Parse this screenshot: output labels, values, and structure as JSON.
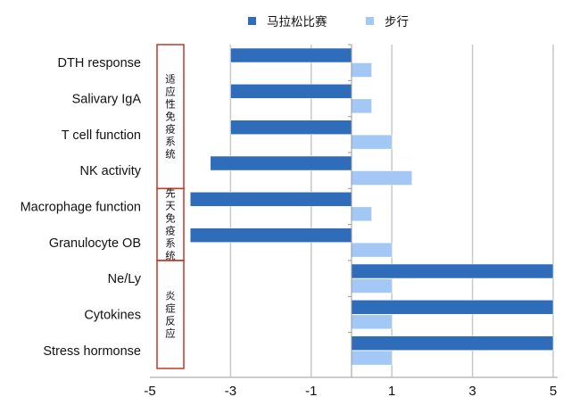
{
  "chart_data": {
    "type": "bar",
    "orientation": "horizontal",
    "categories": [
      "DTH response",
      "Salivary IgA",
      "T cell function",
      "NK activity",
      "Macrophage function",
      "Granulocyte OB",
      "Ne/Ly",
      "Cytokines",
      "Stress hormonse"
    ],
    "series": [
      {
        "name": "马拉松比赛",
        "color": "#2f6dbb",
        "values": [
          -3,
          -3,
          -3,
          -3.5,
          -4,
          -4,
          5,
          5,
          5
        ]
      },
      {
        "name": "步行",
        "color": "#a4c8f6",
        "values": [
          0.5,
          0.5,
          1,
          1.5,
          0.5,
          1,
          1,
          1,
          1
        ]
      }
    ],
    "groups": [
      {
        "label": "适应性免疫系统",
        "categories": [
          "DTH response",
          "Salivary IgA",
          "T cell function",
          "NK activity"
        ]
      },
      {
        "label": "先天免疫系统",
        "categories": [
          "Macrophage function",
          "Granulocyte OB"
        ]
      },
      {
        "label": "炎症反应",
        "categories": [
          "Ne/Ly",
          "Cytokines",
          "Stress hormonse"
        ]
      }
    ],
    "group_box_color": "#c0392b",
    "xlim": [
      -5,
      5
    ],
    "xticks": [
      -5,
      -3,
      -1,
      1,
      3,
      5
    ],
    "grid": "vertical",
    "legend": "top"
  }
}
